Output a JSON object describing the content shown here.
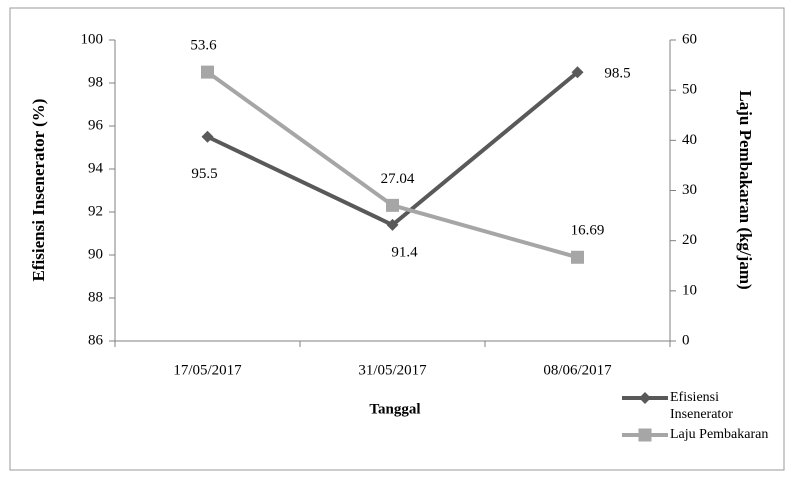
{
  "chart_data": {
    "type": "line",
    "x_label": "Tanggal",
    "y_label": "Efisiensi Insenerator (%)",
    "y2_label": "Laju Pembakaran (kg/jam)",
    "categories": [
      "17/05/2017",
      "31/05/2017",
      "08/06/2017"
    ],
    "series": [
      {
        "name": "Efisiensi Insenerator",
        "color": "#595959",
        "marker": "diamond",
        "values": [
          95.5,
          91.4,
          98.5
        ]
      },
      {
        "name": "Laju Pembakaran",
        "color": "#a6a6a6",
        "marker": "square",
        "axis": "y2",
        "values": [
          53.6,
          27.04,
          16.69
        ]
      }
    ],
    "ylim": [
      86,
      100
    ],
    "yticks": [
      86,
      88,
      90,
      92,
      94,
      96,
      98,
      100
    ],
    "y2lim": [
      0,
      60
    ],
    "y2ticks": [
      0,
      10,
      20,
      30,
      40,
      50,
      60
    ],
    "grid": false,
    "legend": "lower right"
  }
}
